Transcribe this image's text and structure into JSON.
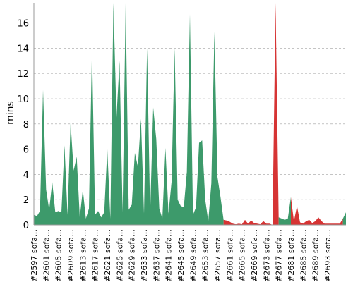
{
  "chart_data": {
    "type": "area",
    "ylabel": "mins",
    "xlabel": "",
    "ylim": [
      0,
      17.6
    ],
    "yticks": [
      0,
      2,
      4,
      6,
      8,
      10,
      12,
      14,
      16
    ],
    "grid": true,
    "colors": {
      "success": "#3d9a6b",
      "failure": "#d63434"
    },
    "x_tick_labels": [
      "#2597 sofa…",
      "#2601 sofa…",
      "#2605 sofa…",
      "#2609 sofa…",
      "#2613 sofa…",
      "#2617 sofa…",
      "#2621 sofa…",
      "#2625 sofa…",
      "#2629 sofa…",
      "#2633 sofa…",
      "#2637 sofa…",
      "#2641 sofa…",
      "#2645 sofa…",
      "#2649 sofa…",
      "#2653 sofa…",
      "#2657 sofa…",
      "#2661 sofa…",
      "#2665 sofa…",
      "#2669 sofa…",
      "#2673 sofa…",
      "#2677 sofa…",
      "#2681 sofa…",
      "#2685 sofa…",
      "#2689 sofa…",
      "#2693 sofa…"
    ],
    "build_start": 2597,
    "values": [
      0.8,
      0.7,
      1.1,
      10.7,
      2.8,
      1.2,
      3.4,
      1.0,
      1.1,
      1.0,
      6.3,
      0.8,
      8.1,
      4.3,
      5.4,
      0.6,
      2.8,
      0.5,
      1.3,
      14.0,
      0.8,
      1.1,
      0.6,
      1.0,
      6.0,
      0.5,
      17.6,
      8.5,
      13.0,
      1.0,
      17.6,
      1.2,
      1.6,
      5.7,
      4.6,
      8.4,
      0.9,
      14.0,
      0.9,
      9.3,
      6.8,
      1.3,
      0.5,
      6.1,
      0.9,
      3.4,
      14.0,
      2.0,
      1.5,
      1.4,
      4.2,
      16.7,
      0.8,
      1.4,
      6.5,
      6.7,
      2.0,
      0.3,
      3.3,
      15.3,
      3.8,
      2.2,
      0.4,
      0.35,
      0.25,
      0.1,
      0.05,
      0.1,
      0.05,
      0.4,
      0.1,
      0.35,
      0.15,
      0.1,
      0.05,
      0.3,
      0.1,
      0.1,
      0.0,
      17.6,
      0.6,
      0.5,
      0.4,
      0.5,
      2.2,
      0.3,
      1.5,
      0.2,
      0.1,
      0.3,
      0.4,
      0.15,
      0.3,
      0.6,
      0.3,
      0.1,
      0.1,
      0.1,
      0.1,
      0.1,
      0.1,
      0.5,
      1.0
    ],
    "status": [
      "s",
      "s",
      "s",
      "s",
      "s",
      "s",
      "s",
      "s",
      "s",
      "s",
      "s",
      "s",
      "s",
      "s",
      "s",
      "s",
      "s",
      "s",
      "s",
      "s",
      "s",
      "s",
      "s",
      "s",
      "s",
      "s",
      "s",
      "s",
      "s",
      "s",
      "s",
      "s",
      "s",
      "s",
      "s",
      "s",
      "s",
      "s",
      "s",
      "s",
      "s",
      "s",
      "s",
      "s",
      "s",
      "s",
      "s",
      "s",
      "s",
      "s",
      "s",
      "s",
      "s",
      "s",
      "s",
      "s",
      "s",
      "s",
      "s",
      "s",
      "s",
      "s",
      "f",
      "f",
      "f",
      "f",
      "f",
      "f",
      "f",
      "f",
      "f",
      "f",
      "f",
      "f",
      "f",
      "f",
      "f",
      "f",
      "f",
      "f",
      "s",
      "s",
      "s",
      "s",
      "f",
      "f",
      "f",
      "f",
      "f",
      "f",
      "f",
      "f",
      "f",
      "f",
      "f",
      "f",
      "f",
      "f",
      "f",
      "f",
      "f",
      "s",
      "s"
    ]
  }
}
